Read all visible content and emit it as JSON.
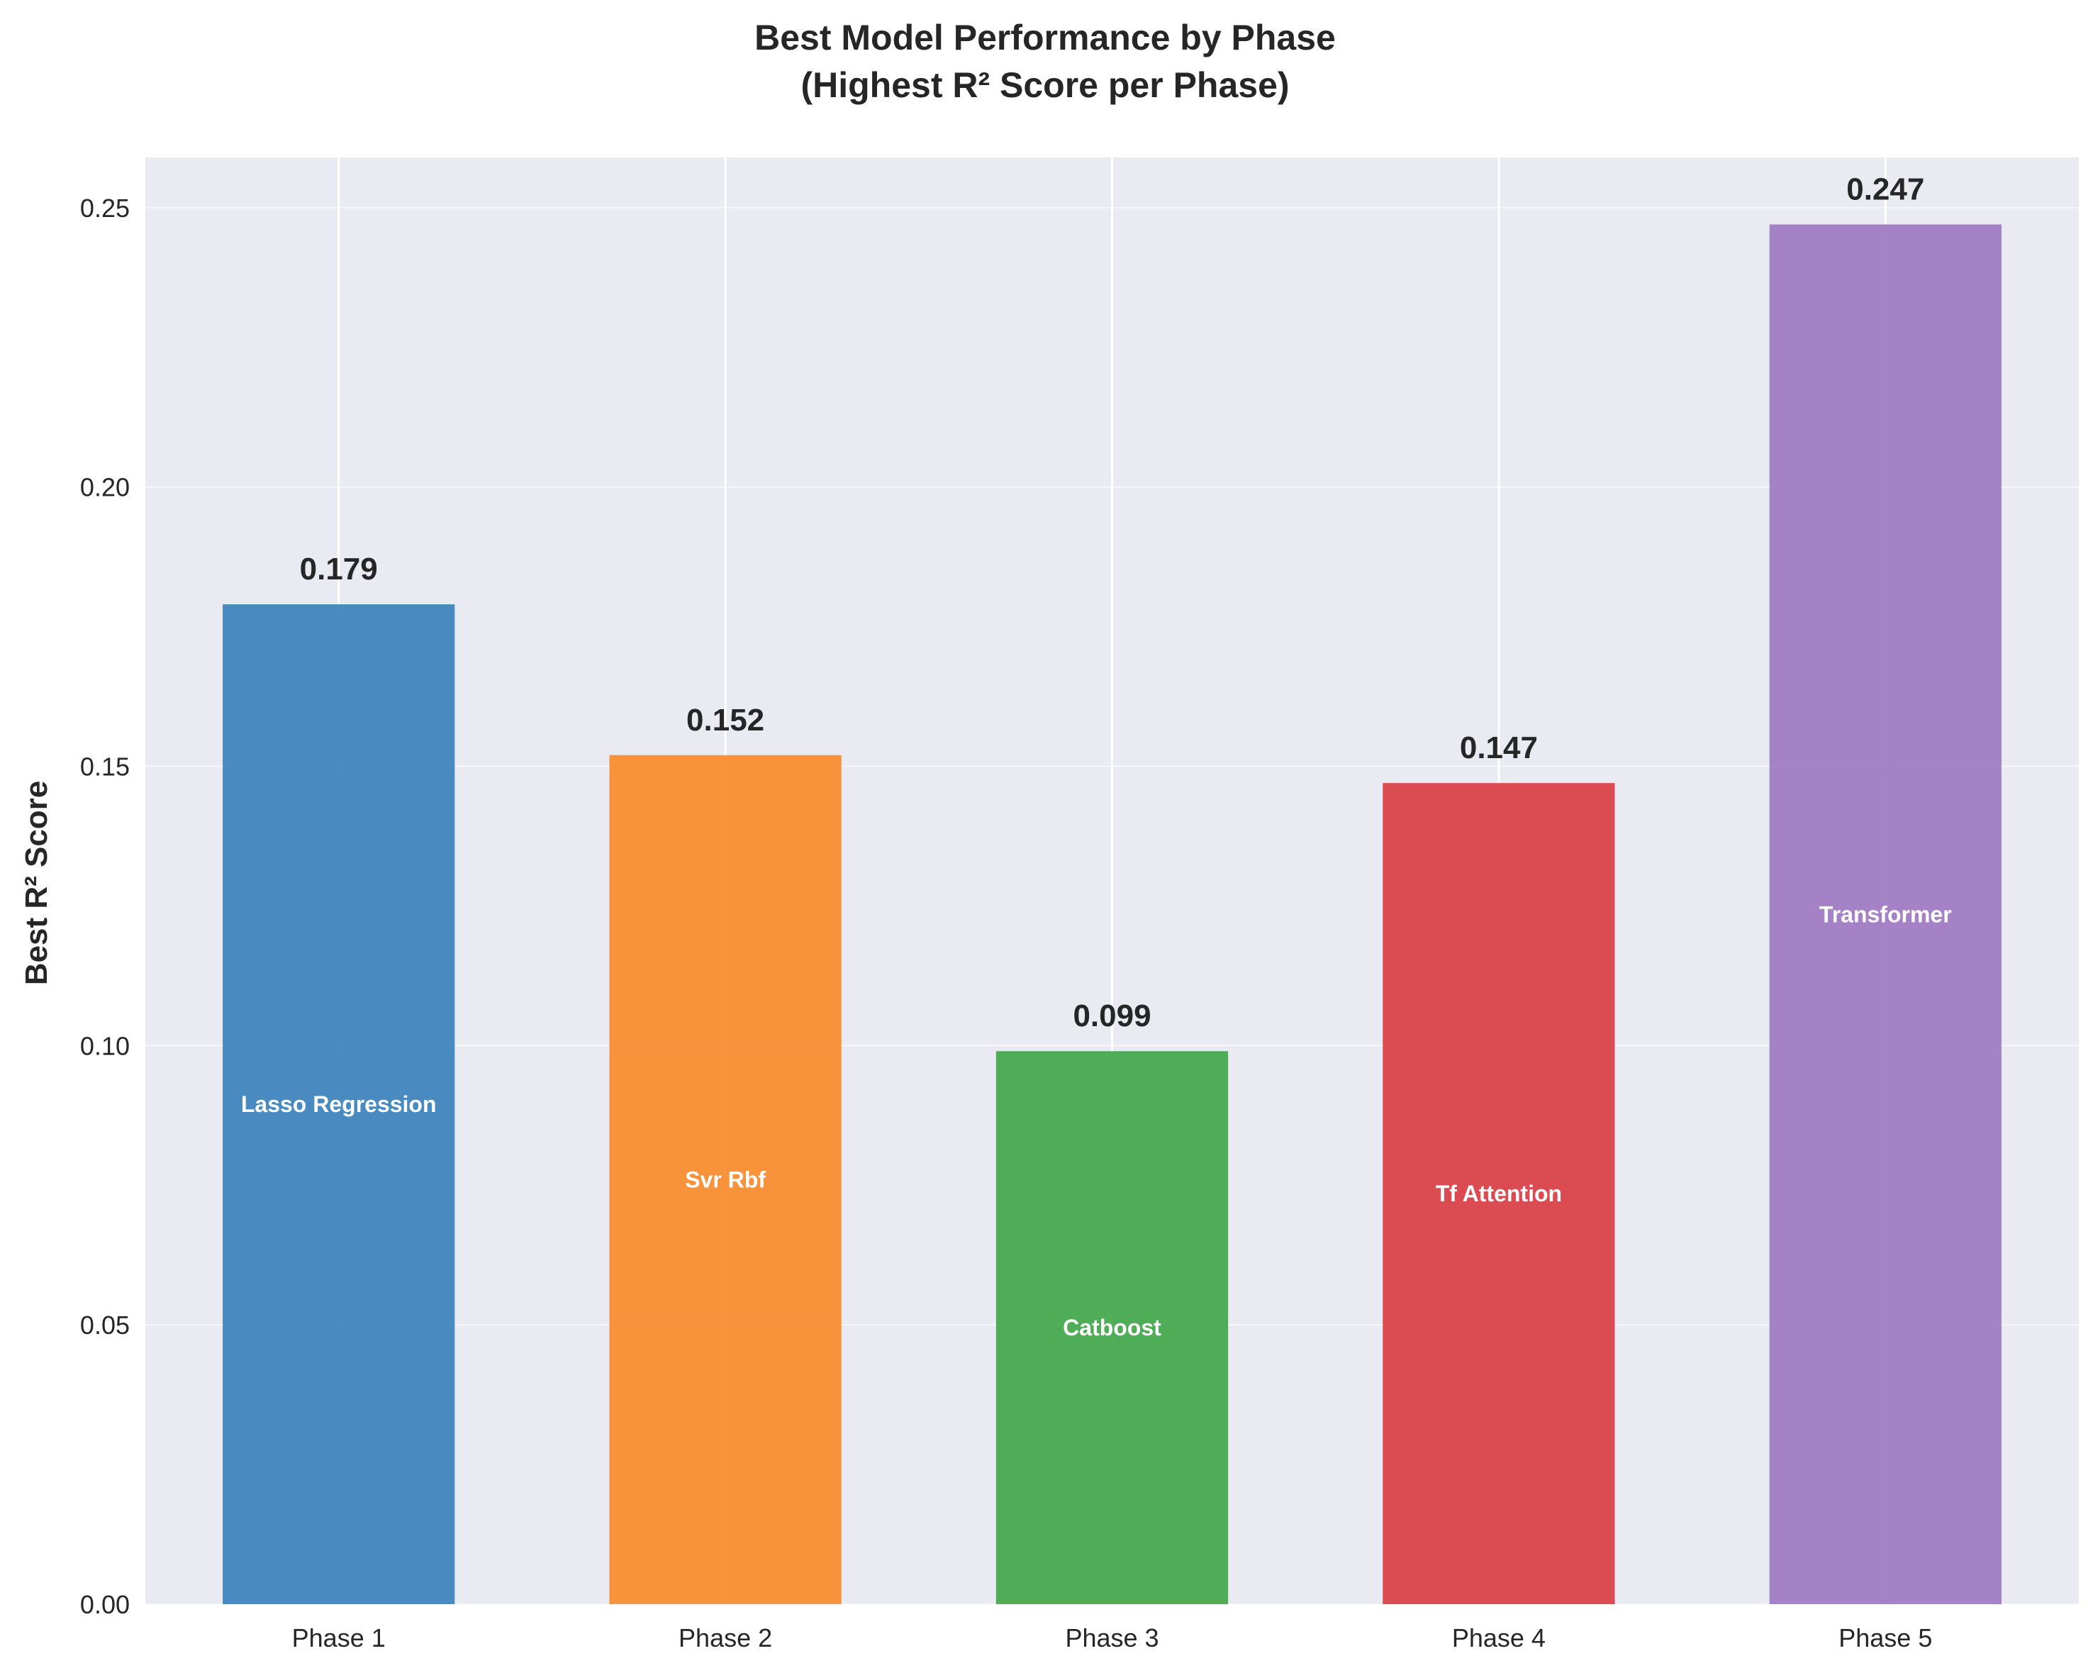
{
  "chart_data": {
    "type": "bar",
    "title": "Best Model Performance by Phase",
    "subtitle": "(Highest R² Score per Phase)",
    "xlabel": "",
    "ylabel": "Best R² Score",
    "categories": [
      "Phase 1",
      "Phase 2",
      "Phase 3",
      "Phase 4",
      "Phase 5"
    ],
    "values": [
      0.179,
      0.152,
      0.099,
      0.147,
      0.247
    ],
    "value_labels": [
      "0.179",
      "0.152",
      "0.099",
      "0.147",
      "0.247"
    ],
    "model_names": [
      "Lasso Regression",
      "Svr Rbf",
      "Catboost",
      "Tf Attention",
      "Transformer"
    ],
    "colors": [
      "#3b82bc",
      "#f98a2b",
      "#41a64a",
      "#d83e43",
      "#9e77c2"
    ],
    "ylim": [
      0,
      0.259
    ],
    "yticks": [
      0.0,
      0.05,
      0.1,
      0.15,
      0.2,
      0.25
    ],
    "ytick_labels": [
      "0.00",
      "0.05",
      "0.10",
      "0.15",
      "0.20",
      "0.25"
    ],
    "grid": true,
    "legend": "none",
    "background": "#eaeaf2"
  }
}
